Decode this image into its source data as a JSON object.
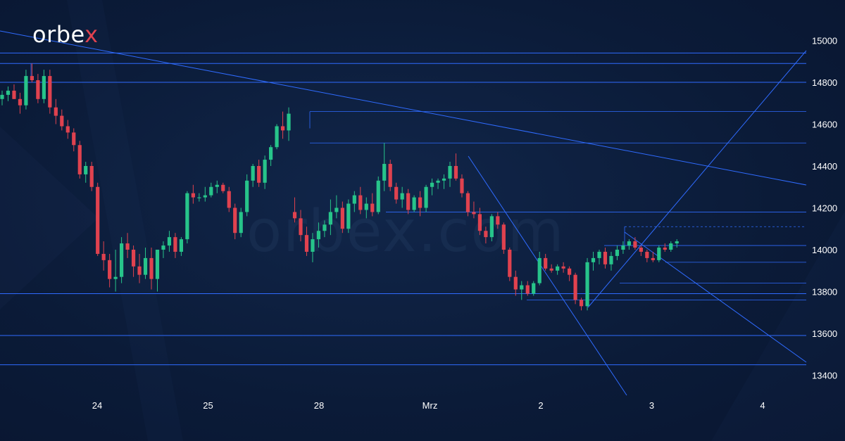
{
  "brand": {
    "logo_main": "orbe",
    "logo_accent": "x",
    "watermark": "orbex.com"
  },
  "colors": {
    "background": "#0c1d3b",
    "bull": "#27c48a",
    "bear": "#e0424f",
    "line": "#2f6bff",
    "text": "#ffffff"
  },
  "chart_data": {
    "type": "candlestick",
    "x_labels": [
      {
        "label": "24",
        "index": 8
      },
      {
        "label": "25",
        "index": 18
      },
      {
        "label": "28",
        "index": 28
      },
      {
        "label": "Mrz",
        "index": 38
      },
      {
        "label": "2",
        "index": 48
      },
      {
        "label": "3",
        "index": 58
      },
      {
        "label": "4",
        "index": 68
      }
    ],
    "y_ticks": [
      13400,
      13600,
      13800,
      14000,
      14200,
      14400,
      14600,
      14800,
      15000
    ],
    "ylim": [
      13310,
      15070
    ],
    "candles": [
      [
        14720,
        14760,
        14690,
        14740
      ],
      [
        14740,
        14780,
        14710,
        14760
      ],
      [
        14760,
        14790,
        14720,
        14720
      ],
      [
        14720,
        14750,
        14650,
        14690
      ],
      [
        14690,
        14860,
        14670,
        14830
      ],
      [
        14830,
        14890,
        14800,
        14810
      ],
      [
        14810,
        14840,
        14700,
        14720
      ],
      [
        14720,
        14860,
        14700,
        14830
      ],
      [
        14830,
        14860,
        14650,
        14680
      ],
      [
        14680,
        14720,
        14600,
        14640
      ],
      [
        14640,
        14670,
        14570,
        14590
      ],
      [
        14590,
        14620,
        14530,
        14560
      ],
      [
        14560,
        14580,
        14470,
        14500
      ],
      [
        14500,
        14520,
        14340,
        14360
      ],
      [
        14360,
        14420,
        14320,
        14400
      ],
      [
        14400,
        14420,
        14280,
        14300
      ],
      [
        14300,
        14320,
        13970,
        13980
      ],
      [
        13980,
        14040,
        13900,
        13950
      ],
      [
        13950,
        13980,
        13820,
        13860
      ],
      [
        13860,
        14000,
        13800,
        13870
      ],
      [
        13870,
        14060,
        13840,
        14030
      ],
      [
        14030,
        14080,
        13960,
        14000
      ],
      [
        14000,
        14020,
        13870,
        13920
      ],
      [
        13920,
        13980,
        13840,
        13880
      ],
      [
        13880,
        14010,
        13860,
        13960
      ],
      [
        13960,
        14010,
        13810,
        13860
      ],
      [
        13860,
        14000,
        13800,
        14000
      ],
      [
        14000,
        14040,
        13960,
        14020
      ],
      [
        14020,
        14090,
        13990,
        14060
      ],
      [
        14060,
        14080,
        13960,
        13990
      ],
      [
        13990,
        14060,
        13970,
        14050
      ],
      [
        14050,
        14280,
        14030,
        14270
      ],
      [
        14270,
        14310,
        14220,
        14250
      ],
      [
        14250,
        14270,
        14230,
        14250
      ],
      [
        14250,
        14300,
        14230,
        14260
      ],
      [
        14260,
        14320,
        14250,
        14300
      ],
      [
        14300,
        14330,
        14270,
        14310
      ],
      [
        14310,
        14320,
        14270,
        14280
      ],
      [
        14280,
        14300,
        14180,
        14200
      ],
      [
        14200,
        14220,
        14050,
        14080
      ],
      [
        14080,
        14200,
        14060,
        14180
      ],
      [
        14180,
        14360,
        14160,
        14330
      ],
      [
        14330,
        14410,
        14300,
        14400
      ],
      [
        14400,
        14430,
        14300,
        14320
      ],
      [
        14320,
        14450,
        14290,
        14430
      ],
      [
        14430,
        14500,
        14400,
        14490
      ],
      [
        14490,
        14600,
        14480,
        14590
      ],
      [
        14590,
        14660,
        14530,
        14570
      ],
      [
        14570,
        14680,
        14520,
        14650
      ],
      [
        14180,
        14250,
        14130,
        14150
      ],
      [
        14150,
        14190,
        14040,
        14070
      ],
      [
        14070,
        14110,
        13970,
        13990
      ],
      [
        13990,
        14080,
        13940,
        14050
      ],
      [
        14050,
        14130,
        14010,
        14090
      ],
      [
        14090,
        14140,
        14060,
        14120
      ],
      [
        14120,
        14240,
        14070,
        14180
      ],
      [
        14180,
        14260,
        14150,
        14200
      ],
      [
        14200,
        14230,
        14080,
        14100
      ],
      [
        14100,
        14240,
        14080,
        14220
      ],
      [
        14220,
        14280,
        14180,
        14260
      ],
      [
        14260,
        14300,
        14170,
        14190
      ],
      [
        14190,
        14250,
        14150,
        14220
      ],
      [
        14220,
        14270,
        14160,
        14180
      ],
      [
        14180,
        14350,
        14170,
        14330
      ],
      [
        14330,
        14510,
        14280,
        14410
      ],
      [
        14410,
        14430,
        14280,
        14300
      ],
      [
        14300,
        14320,
        14220,
        14240
      ],
      [
        14240,
        14300,
        14200,
        14270
      ],
      [
        14270,
        14290,
        14170,
        14190
      ],
      [
        14190,
        14260,
        14180,
        14250
      ],
      [
        14250,
        14280,
        14160,
        14200
      ],
      [
        14200,
        14310,
        14180,
        14300
      ],
      [
        14300,
        14340,
        14260,
        14320
      ],
      [
        14320,
        14340,
        14290,
        14330
      ],
      [
        14330,
        14360,
        14290,
        14340
      ],
      [
        14340,
        14420,
        14300,
        14400
      ],
      [
        14400,
        14460,
        14330,
        14340
      ],
      [
        14340,
        14360,
        14250,
        14270
      ],
      [
        14270,
        14280,
        14160,
        14180
      ],
      [
        14180,
        14230,
        14150,
        14170
      ],
      [
        14170,
        14200,
        14070,
        14090
      ],
      [
        14090,
        14110,
        14030,
        14060
      ],
      [
        14060,
        14170,
        14040,
        14160
      ],
      [
        14160,
        14180,
        14100,
        14120
      ],
      [
        14120,
        14130,
        13980,
        14000
      ],
      [
        14000,
        14010,
        13850,
        13870
      ],
      [
        13870,
        13900,
        13780,
        13810
      ],
      [
        13810,
        13850,
        13760,
        13830
      ],
      [
        13830,
        13850,
        13780,
        13790
      ],
      [
        13790,
        13850,
        13780,
        13840
      ],
      [
        13840,
        13990,
        13830,
        13960
      ],
      [
        13960,
        13980,
        13900,
        13910
      ],
      [
        13910,
        13930,
        13890,
        13900
      ],
      [
        13900,
        13930,
        13880,
        13920
      ],
      [
        13920,
        13940,
        13890,
        13910
      ],
      [
        13910,
        13920,
        13850,
        13880
      ],
      [
        13880,
        13890,
        13740,
        13760
      ],
      [
        13760,
        13770,
        13710,
        13730
      ],
      [
        13730,
        13960,
        13710,
        13940
      ],
      [
        13940,
        13990,
        13900,
        13960
      ],
      [
        13960,
        14000,
        13930,
        13990
      ],
      [
        13990,
        14010,
        13910,
        13930
      ],
      [
        13930,
        13990,
        13900,
        13970
      ],
      [
        13970,
        14020,
        13950,
        14000
      ],
      [
        14000,
        14040,
        13980,
        14020
      ],
      [
        14020,
        14050,
        14000,
        14040
      ],
      [
        14040,
        14060,
        14000,
        14010
      ],
      [
        14010,
        14020,
        13970,
        13990
      ],
      [
        13990,
        14000,
        13940,
        13960
      ],
      [
        13960,
        13990,
        13940,
        13950
      ],
      [
        13950,
        14020,
        13940,
        14010
      ],
      [
        14010,
        14030,
        13990,
        14000
      ],
      [
        14000,
        14040,
        13990,
        14030
      ],
      [
        14030,
        14050,
        14010,
        14040
      ]
    ]
  }
}
